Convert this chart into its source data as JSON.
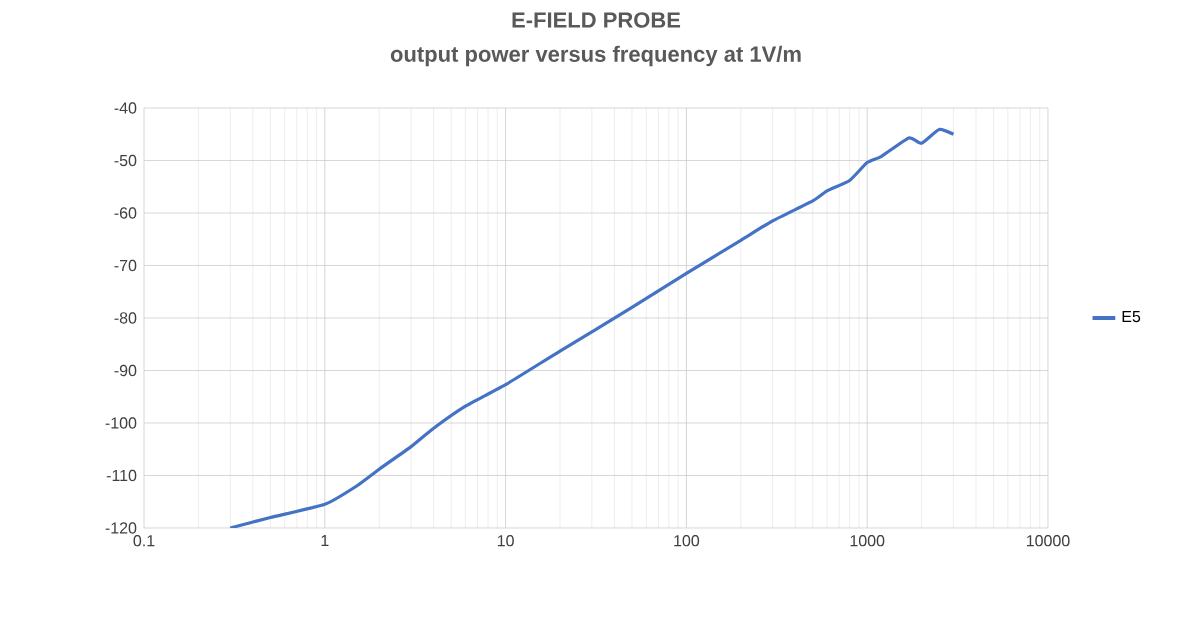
{
  "chart_data": {
    "type": "line",
    "title": "E-FIELD PROBE",
    "subtitle": "output power versus frequency at 1V/m",
    "x": [
      0.3,
      0.5,
      1,
      1.5,
      2,
      3,
      4,
      6,
      10,
      20,
      50,
      100,
      200,
      300,
      500,
      600,
      800,
      1000,
      1200,
      1700,
      2000,
      2500,
      3000
    ],
    "series": [
      {
        "name": "E5",
        "color": "#4472c4",
        "values": [
          -120,
          -118,
          -115.5,
          -112,
          -108.8,
          -104.5,
          -101,
          -96.8,
          -92.7,
          -86.3,
          -78,
          -71.5,
          -65.2,
          -61.5,
          -57.7,
          -55.8,
          -53.8,
          -50.4,
          -49.2,
          -45.7,
          -46.7,
          -44.1,
          -45
        ]
      }
    ],
    "log": "x",
    "xlim": [
      0.1,
      10000
    ],
    "xticks": [
      0.1,
      1,
      10,
      100,
      1000,
      10000
    ],
    "ylim": [
      -120,
      -40
    ],
    "yticks": [
      -120,
      -110,
      -100,
      -90,
      -80,
      -70,
      -60,
      -50,
      -40
    ],
    "grid": true,
    "legend": "right",
    "marker": "none",
    "line_style": "solid"
  }
}
